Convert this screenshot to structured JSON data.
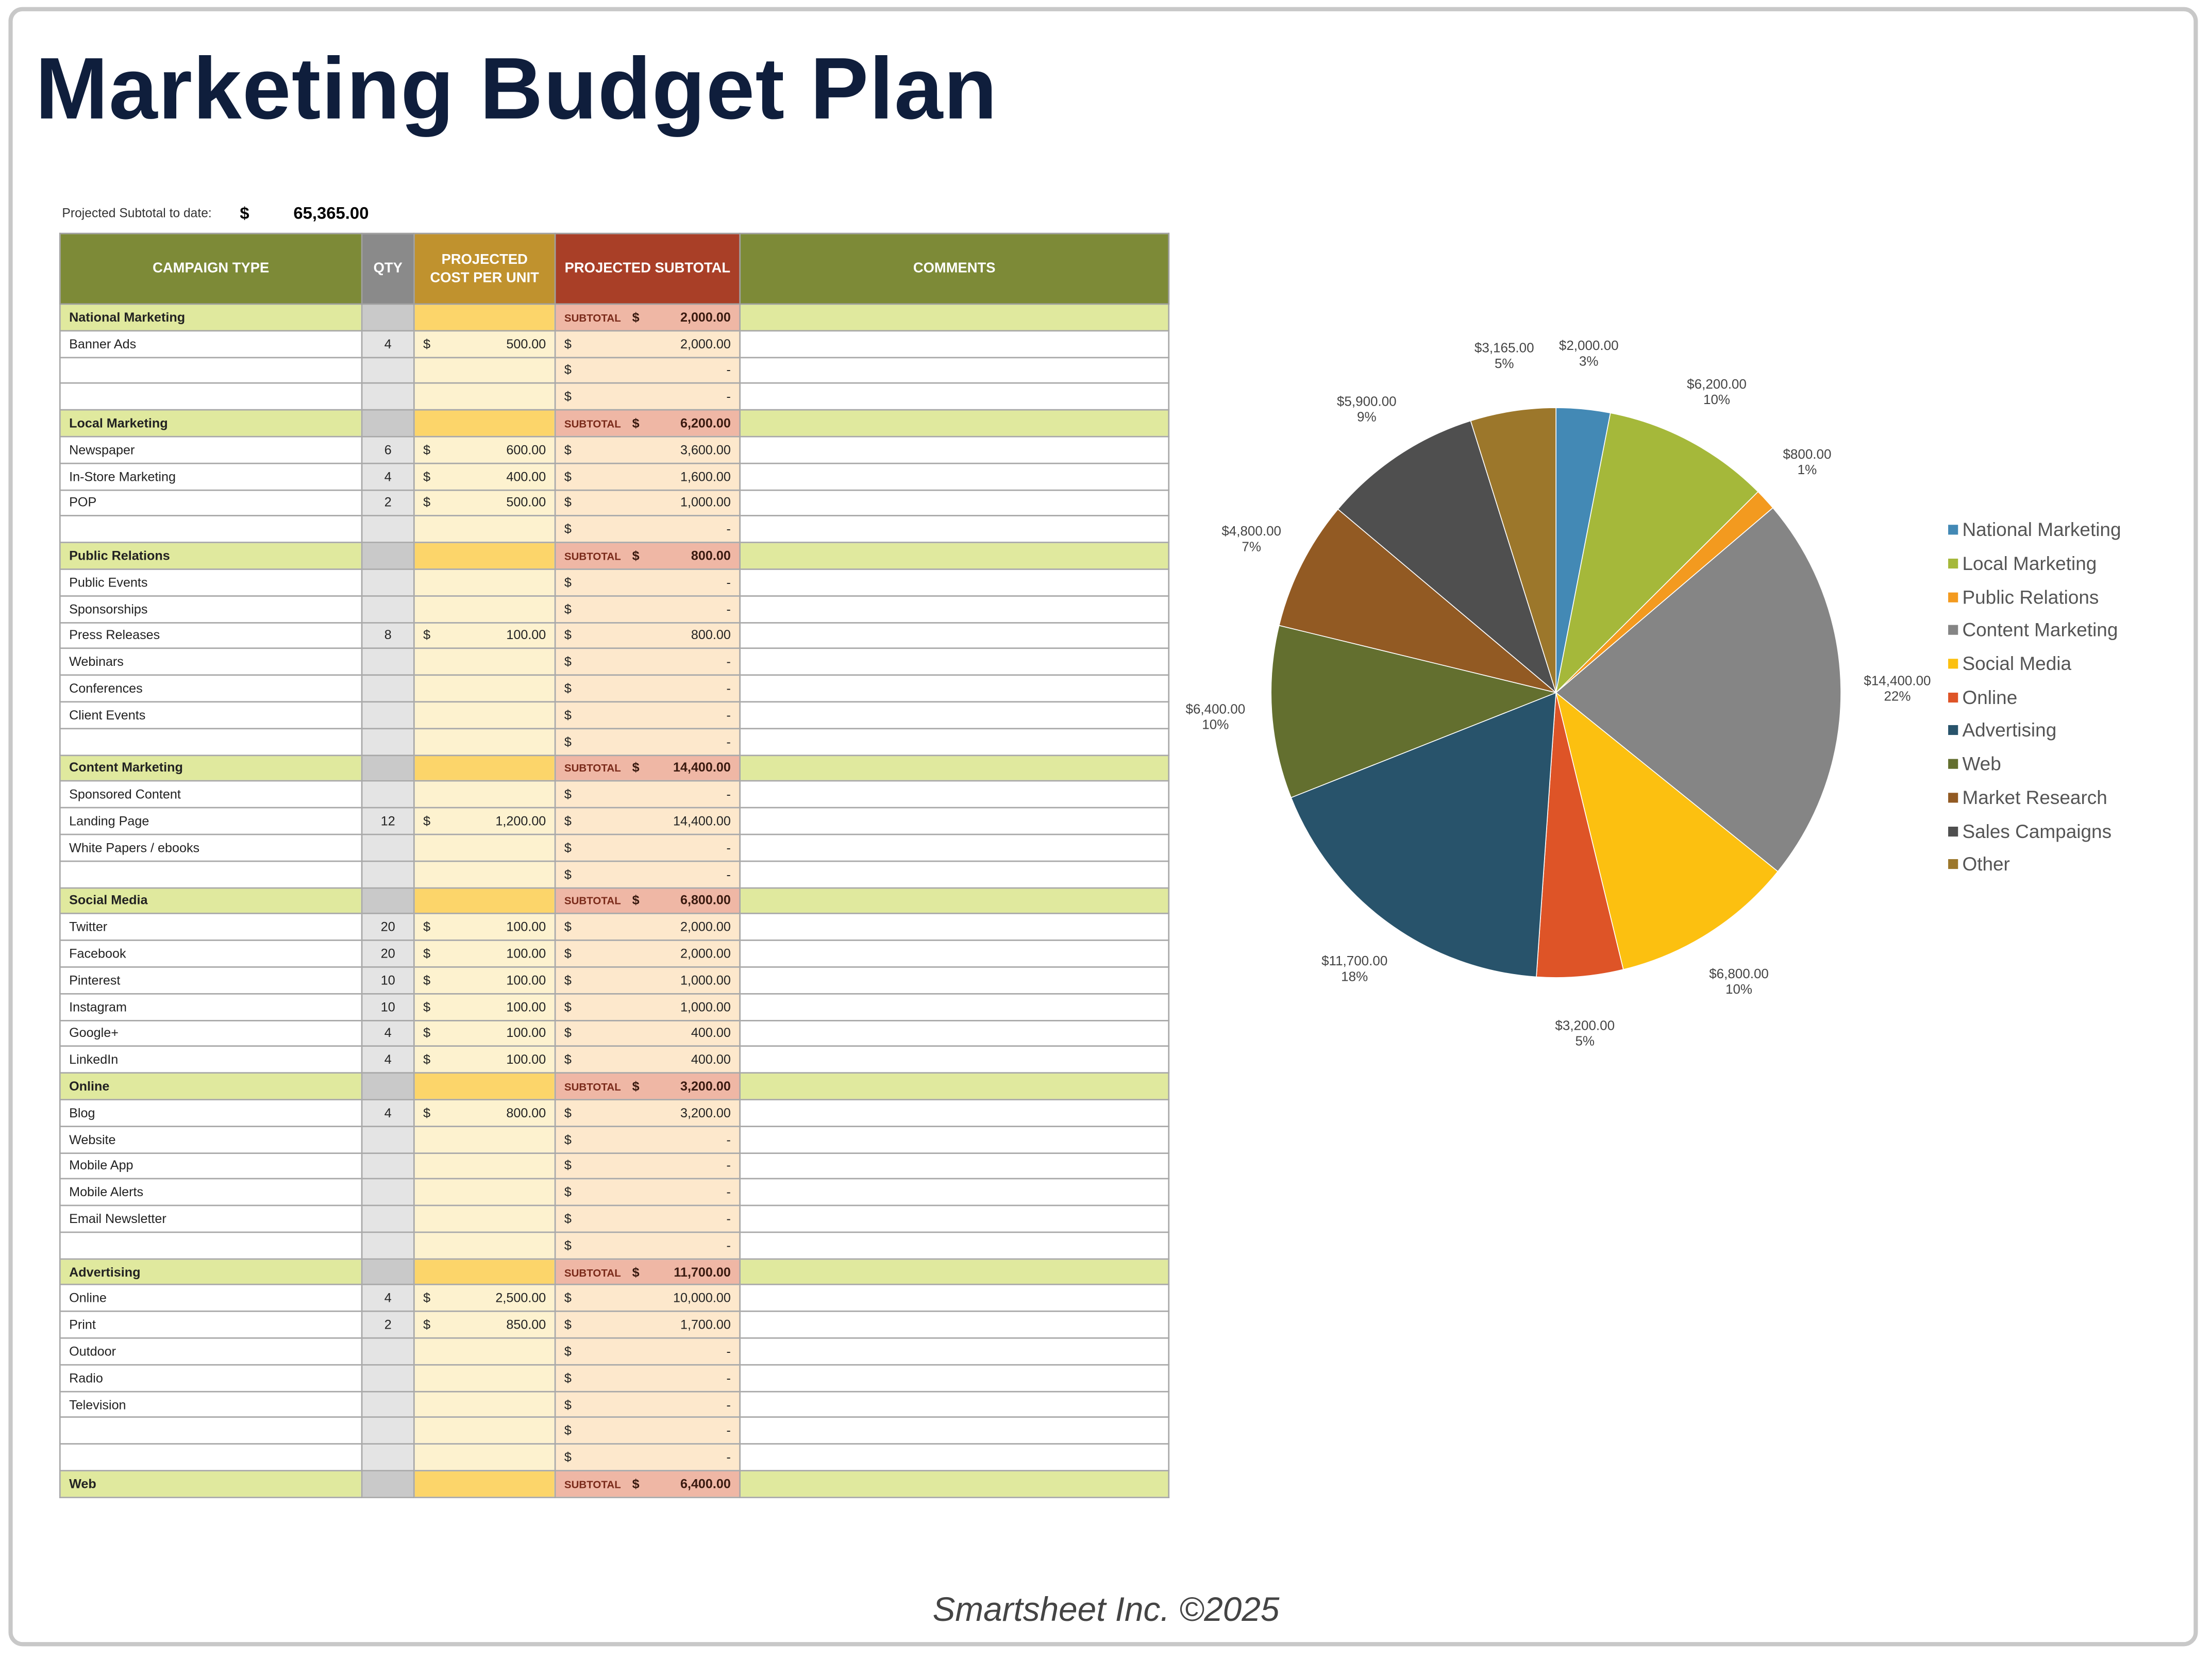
{
  "title": "Marketing Budget Plan",
  "projected": {
    "label": "Projected Subtotal to date:",
    "currency": "$",
    "value": "65,365.00"
  },
  "table": {
    "headers": [
      "CAMPAIGN TYPE",
      "QTY",
      "PROJECTED COST PER UNIT",
      "PROJECTED SUBTOTAL",
      "COMMENTS"
    ],
    "header_colors": [
      "#7d8a37",
      "#8a8a8a",
      "#c0922e",
      "#a93f27",
      "#7d8a37"
    ],
    "subtotal_label": "SUBTOTAL",
    "currency": "$",
    "rows": [
      {
        "type": "section",
        "label": "National Marketing",
        "subtotal": "2,000.00"
      },
      {
        "type": "item",
        "label": "Banner Ads",
        "qty": "4",
        "cost": "500.00",
        "subtotal": "2,000.00"
      },
      {
        "type": "item",
        "label": "",
        "qty": "",
        "cost": "",
        "subtotal": "-"
      },
      {
        "type": "item",
        "label": "",
        "qty": "",
        "cost": "",
        "subtotal": "-"
      },
      {
        "type": "section",
        "label": "Local Marketing",
        "subtotal": "6,200.00"
      },
      {
        "type": "item",
        "label": "Newspaper",
        "qty": "6",
        "cost": "600.00",
        "subtotal": "3,600.00"
      },
      {
        "type": "item",
        "label": "In-Store Marketing",
        "qty": "4",
        "cost": "400.00",
        "subtotal": "1,600.00"
      },
      {
        "type": "item",
        "label": "POP",
        "qty": "2",
        "cost": "500.00",
        "subtotal": "1,000.00"
      },
      {
        "type": "item",
        "label": "",
        "qty": "",
        "cost": "",
        "subtotal": "-"
      },
      {
        "type": "section",
        "label": "Public Relations",
        "subtotal": "800.00"
      },
      {
        "type": "item",
        "label": "Public Events",
        "qty": "",
        "cost": "",
        "subtotal": "-"
      },
      {
        "type": "item",
        "label": "Sponsorships",
        "qty": "",
        "cost": "",
        "subtotal": "-"
      },
      {
        "type": "item",
        "label": "Press Releases",
        "qty": "8",
        "cost": "100.00",
        "subtotal": "800.00"
      },
      {
        "type": "item",
        "label": "Webinars",
        "qty": "",
        "cost": "",
        "subtotal": "-"
      },
      {
        "type": "item",
        "label": "Conferences",
        "qty": "",
        "cost": "",
        "subtotal": "-"
      },
      {
        "type": "item",
        "label": "Client Events",
        "qty": "",
        "cost": "",
        "subtotal": "-"
      },
      {
        "type": "item",
        "label": "",
        "qty": "",
        "cost": "",
        "subtotal": "-"
      },
      {
        "type": "section",
        "label": "Content Marketing",
        "subtotal": "14,400.00"
      },
      {
        "type": "item",
        "label": "Sponsored Content",
        "qty": "",
        "cost": "",
        "subtotal": "-"
      },
      {
        "type": "item",
        "label": "Landing Page",
        "qty": "12",
        "cost": "1,200.00",
        "subtotal": "14,400.00"
      },
      {
        "type": "item",
        "label": "White Papers / ebooks",
        "qty": "",
        "cost": "",
        "subtotal": "-"
      },
      {
        "type": "item",
        "label": "",
        "qty": "",
        "cost": "",
        "subtotal": "-"
      },
      {
        "type": "section",
        "label": "Social Media",
        "subtotal": "6,800.00"
      },
      {
        "type": "item",
        "label": "Twitter",
        "qty": "20",
        "cost": "100.00",
        "subtotal": "2,000.00"
      },
      {
        "type": "item",
        "label": "Facebook",
        "qty": "20",
        "cost": "100.00",
        "subtotal": "2,000.00"
      },
      {
        "type": "item",
        "label": "Pinterest",
        "qty": "10",
        "cost": "100.00",
        "subtotal": "1,000.00"
      },
      {
        "type": "item",
        "label": "Instagram",
        "qty": "10",
        "cost": "100.00",
        "subtotal": "1,000.00"
      },
      {
        "type": "item",
        "label": "Google+",
        "qty": "4",
        "cost": "100.00",
        "subtotal": "400.00"
      },
      {
        "type": "item",
        "label": "LinkedIn",
        "qty": "4",
        "cost": "100.00",
        "subtotal": "400.00"
      },
      {
        "type": "section",
        "label": "Online",
        "subtotal": "3,200.00"
      },
      {
        "type": "item",
        "label": "Blog",
        "qty": "4",
        "cost": "800.00",
        "subtotal": "3,200.00"
      },
      {
        "type": "item",
        "label": "Website",
        "qty": "",
        "cost": "",
        "subtotal": "-"
      },
      {
        "type": "item",
        "label": "Mobile App",
        "qty": "",
        "cost": "",
        "subtotal": "-"
      },
      {
        "type": "item",
        "label": "Mobile Alerts",
        "qty": "",
        "cost": "",
        "subtotal": "-"
      },
      {
        "type": "item",
        "label": "Email Newsletter",
        "qty": "",
        "cost": "",
        "subtotal": "-"
      },
      {
        "type": "item",
        "label": "",
        "qty": "",
        "cost": "",
        "subtotal": "-"
      },
      {
        "type": "section",
        "label": "Advertising",
        "subtotal": "11,700.00"
      },
      {
        "type": "item",
        "label": "Online",
        "qty": "4",
        "cost": "2,500.00",
        "subtotal": "10,000.00"
      },
      {
        "type": "item",
        "label": "Print",
        "qty": "2",
        "cost": "850.00",
        "subtotal": "1,700.00"
      },
      {
        "type": "item",
        "label": "Outdoor",
        "qty": "",
        "cost": "",
        "subtotal": "-"
      },
      {
        "type": "item",
        "label": "Radio",
        "qty": "",
        "cost": "",
        "subtotal": "-"
      },
      {
        "type": "item",
        "label": "Television",
        "qty": "",
        "cost": "",
        "subtotal": "-"
      },
      {
        "type": "item",
        "label": "",
        "qty": "",
        "cost": "",
        "subtotal": "-"
      },
      {
        "type": "item",
        "label": "",
        "qty": "",
        "cost": "",
        "subtotal": "-"
      },
      {
        "type": "section",
        "label": "Web",
        "subtotal": "6,400.00"
      }
    ]
  },
  "chart_data": {
    "type": "pie",
    "start": "top, clockwise",
    "legend_position": "right",
    "categories": [
      "National Marketing",
      "Local Marketing",
      "Public Relations",
      "Content Marketing",
      "Social Media",
      "Online",
      "Advertising",
      "Web",
      "Market Research",
      "Sales Campaigns",
      "Other"
    ],
    "values": [
      2000,
      6200,
      800,
      14400,
      6800,
      3200,
      11700,
      6400,
      4800,
      5900,
      3165
    ],
    "value_labels": [
      "$2,000.00",
      "$6,200.00",
      "$800.00",
      "$14,400.00",
      "$6,800.00",
      "$3,200.00",
      "$11,700.00",
      "$6,400.00",
      "$4,800.00",
      "$5,900.00",
      "$3,165.00"
    ],
    "percent_labels": [
      "3%",
      "10%",
      "1%",
      "22%",
      "10%",
      "5%",
      "18%",
      "10%",
      "7%",
      "9%",
      "5%"
    ],
    "colors": [
      "#4389b5",
      "#a5b83a",
      "#f39a1f",
      "#858585",
      "#fcc010",
      "#de5427",
      "#28536b",
      "#636f2f",
      "#925a23",
      "#4f4f4f",
      "#9c772b"
    ]
  },
  "footer": "Smartsheet Inc. ©2025"
}
